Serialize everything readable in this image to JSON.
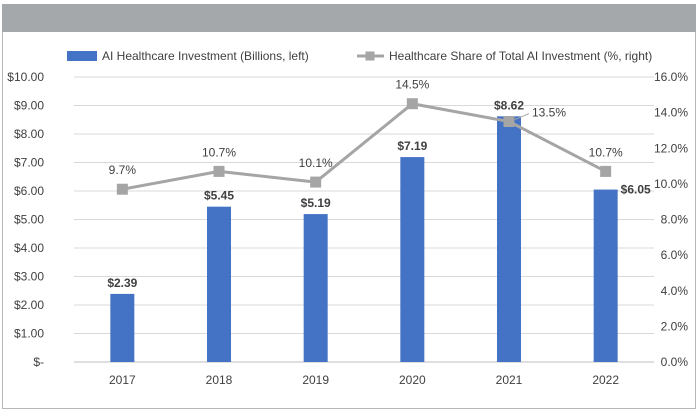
{
  "chart_data": {
    "type": "bar",
    "categories": [
      "2017",
      "2018",
      "2019",
      "2020",
      "2021",
      "2022"
    ],
    "series": [
      {
        "name": "AI Healthcare Investment (Billions, left)",
        "kind": "bar",
        "axis": "left",
        "color": "#4472c4",
        "values": [
          2.39,
          5.45,
          5.19,
          7.19,
          8.62,
          6.05
        ],
        "labels": [
          "$2.39",
          "$5.45",
          "$5.19",
          "$7.19",
          "$8.62",
          "$6.05"
        ]
      },
      {
        "name": "Healthcare Share of Total AI Investment (%, right)",
        "kind": "line",
        "axis": "right",
        "color": "#a5a5a5",
        "values": [
          9.7,
          10.7,
          10.1,
          14.5,
          13.5,
          10.7
        ],
        "labels": [
          "9.7%",
          "10.7%",
          "10.1%",
          "14.5%",
          "13.5%",
          "10.7%"
        ]
      }
    ],
    "y_left": {
      "ylim": [
        0,
        10
      ],
      "ticks": [
        "$-",
        "$1.00",
        "$2.00",
        "$3.00",
        "$4.00",
        "$5.00",
        "$6.00",
        "$7.00",
        "$8.00",
        "$9.00",
        "$10.00"
      ]
    },
    "y_right": {
      "ylim": [
        0,
        16
      ],
      "ticks": [
        "0.0%",
        "2.0%",
        "4.0%",
        "6.0%",
        "8.0%",
        "10.0%",
        "12.0%",
        "14.0%",
        "16.0%"
      ]
    },
    "grid": true,
    "legend_position": "top"
  }
}
